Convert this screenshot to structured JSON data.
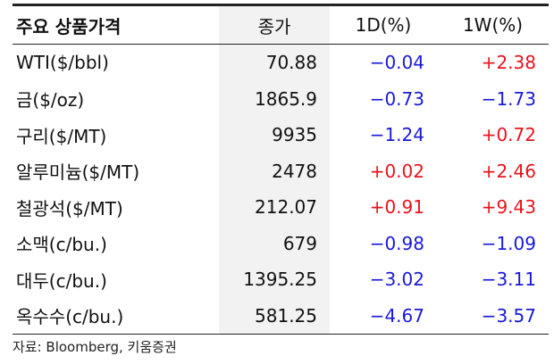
{
  "table": {
    "header": [
      "주요 상품가격",
      "종가",
      "1D(%)",
      "1W(%)"
    ],
    "rows": [
      [
        "WTI($/bbl)",
        "70.88",
        "−0.04",
        "+2.38"
      ],
      [
        "금($/oz)",
        "1865.9",
        "−0.73",
        "−1.73"
      ],
      [
        "구리($/MT)",
        "9935",
        "−1.24",
        "+0.72"
      ],
      [
        "알루미늄($/MT)",
        "2478",
        "+0.02",
        "+2.46"
      ],
      [
        "철광석($/MT)",
        "212.07",
        "+0.91",
        "+9.43"
      ],
      [
        "소맥(c/bu.)",
        "679",
        "−0.98",
        "−1.09"
      ],
      [
        "대두(c/bu.)",
        "1395.25",
        "−3.02",
        "−3.11"
      ],
      [
        "옥수수(c/bu.)",
        "581.25",
        "−4.67",
        "−3.57"
      ]
    ]
  },
  "source": "자료: Bloomberg, 키움증권"
}
